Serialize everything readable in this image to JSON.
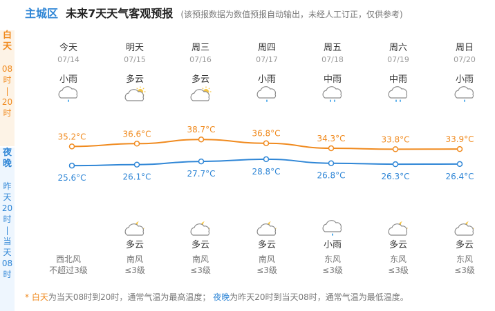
{
  "title": {
    "city": "主城区",
    "main": "未来7天天气客观预报",
    "note": "(该预报数据为数值预报自动输出，未经人工订正，仅供参考)"
  },
  "side": {
    "day": [
      "白",
      "天",
      "",
      "08",
      "时",
      "|",
      "20",
      "时"
    ],
    "night": [
      "夜",
      "晚",
      "",
      "昨",
      "天",
      "20",
      "时",
      "|",
      "当",
      "天",
      "08",
      "时"
    ]
  },
  "days": [
    {
      "name": "今天",
      "date": "07/14",
      "day_weather": "小雨",
      "day_icon": "light-rain-icon",
      "night_weather": "",
      "night_icon": "",
      "wind_dir": "西北风",
      "wind_level": "不超过3级"
    },
    {
      "name": "明天",
      "date": "07/15",
      "day_weather": "多云",
      "day_icon": "cloudy-sun-icon",
      "night_weather": "多云",
      "night_icon": "cloudy-moon-icon",
      "wind_dir": "南风",
      "wind_level": "≤3级"
    },
    {
      "name": "周三",
      "date": "07/16",
      "day_weather": "多云",
      "day_icon": "cloudy-sun-icon",
      "night_weather": "多云",
      "night_icon": "cloudy-moon-icon",
      "wind_dir": "南风",
      "wind_level": "≤3级"
    },
    {
      "name": "周四",
      "date": "07/17",
      "day_weather": "小雨",
      "day_icon": "light-rain-icon",
      "night_weather": "多云",
      "night_icon": "cloudy-moon-icon",
      "wind_dir": "南风",
      "wind_level": "≤3级"
    },
    {
      "name": "周五",
      "date": "07/18",
      "day_weather": "中雨",
      "day_icon": "moderate-rain-icon",
      "night_weather": "小雨",
      "night_icon": "light-rain-icon",
      "wind_dir": "东风",
      "wind_level": "≤3级"
    },
    {
      "name": "周六",
      "date": "07/19",
      "day_weather": "中雨",
      "day_icon": "moderate-rain-icon",
      "night_weather": "多云",
      "night_icon": "cloudy-moon-icon",
      "wind_dir": "东风",
      "wind_level": "≤3级"
    },
    {
      "name": "周日",
      "date": "07/20",
      "day_weather": "小雨",
      "day_icon": "light-rain-icon",
      "night_weather": "多云",
      "night_icon": "cloudy-moon-icon",
      "wind_dir": "东风",
      "wind_level": "≤3级"
    }
  ],
  "chart_data": {
    "type": "line",
    "categories": [
      "07/14",
      "07/15",
      "07/16",
      "07/17",
      "07/18",
      "07/19",
      "07/20"
    ],
    "series": [
      {
        "values": [
          35.2,
          36.6,
          38.7,
          36.8,
          34.3,
          33.8,
          33.9
        ],
        "color": "#f08a1e",
        "labels": [
          "35.2°C",
          "36.6°C",
          "38.7°C",
          "36.8°C",
          "34.3°C",
          "33.8°C",
          "33.9°C"
        ]
      },
      {
        "values": [
          25.6,
          26.1,
          27.7,
          28.8,
          26.8,
          26.3,
          26.4
        ],
        "color": "#2f86d6",
        "labels": [
          "25.6°C",
          "26.1°C",
          "27.7°C",
          "28.8°C",
          "26.8°C",
          "26.3°C",
          "26.4°C"
        ]
      }
    ]
  },
  "footnote": {
    "star": "* ",
    "day_word": "白天",
    "day_text": "为当天08时到20时，通常气温为最高温度；",
    "night_word": "夜晚",
    "night_text": "为昨天20时到当天08时，通常气温为最低温度。"
  },
  "colors": {
    "day": "#f08a1e",
    "night": "#2f86d6",
    "day_bg": "#fdf3e6",
    "night_bg": "#eef6fe"
  }
}
